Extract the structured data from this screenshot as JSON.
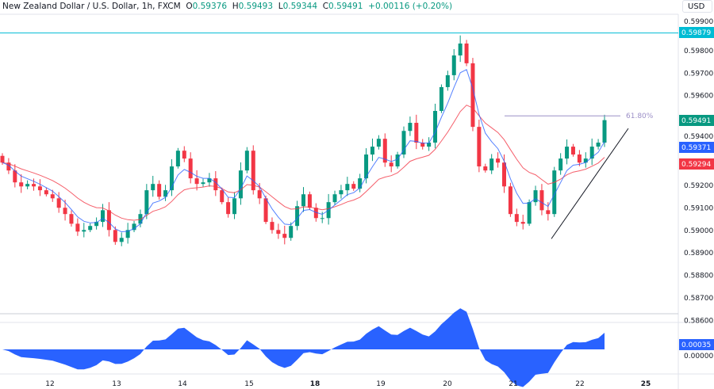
{
  "header": {
    "symbol": "New Zealand Dollar / U.S. Dollar, 1h, FXCM",
    "open_label": "O",
    "open": "0.59376",
    "high_label": "H",
    "high": "0.59493",
    "low_label": "L",
    "low": "0.59344",
    "close_label": "C",
    "close": "0.59491",
    "change": "+0.00116 (+0.20%)"
  },
  "currency": "USD",
  "colors": {
    "up": "#089981",
    "down": "#f23645",
    "fast_ma": "#2962ff",
    "slow_ma": "#f23645",
    "level_line": "#00bcd4",
    "fib": "#9c8fc7",
    "oscillator": "#2962ff"
  },
  "price_axis": [
    "0.59900",
    "0.59800",
    "0.59700",
    "0.59600",
    "0.59400",
    "0.59200",
    "0.59100",
    "0.59000",
    "0.58900",
    "0.58800",
    "0.58700",
    "0.58600"
  ],
  "price_ticks": [
    0.599,
    0.598,
    0.597,
    0.596,
    0.594,
    0.592,
    0.591,
    0.59,
    0.589,
    0.588,
    0.587,
    0.586
  ],
  "time_axis": [
    {
      "label": "12",
      "bold": false
    },
    {
      "label": "13",
      "bold": false
    },
    {
      "label": "14",
      "bold": false
    },
    {
      "label": "15",
      "bold": false
    },
    {
      "label": "18",
      "bold": true
    },
    {
      "label": "19",
      "bold": false
    },
    {
      "label": "20",
      "bold": false
    },
    {
      "label": "21",
      "bold": false
    },
    {
      "label": "22",
      "bold": false
    },
    {
      "label": "25",
      "bold": true
    }
  ],
  "labels": {
    "level": "0.59879",
    "last": "0.59491",
    "fast_ma": "0.59371",
    "slow_ma": "0.59294",
    "oscillator": "0.00035",
    "osc_zero": "0.00000",
    "fib": "61.80%"
  },
  "levels": {
    "horizontal": 0.59879,
    "fib_618": 0.5951,
    "trendline": [
      0.58963,
      0.59454
    ]
  },
  "chart_data": {
    "type": "candlestick",
    "closes": [
      0.59302,
      0.59267,
      0.59214,
      0.59196,
      0.59207,
      0.59196,
      0.59179,
      0.59161,
      0.59143,
      0.59101,
      0.59073,
      0.5903,
      0.58995,
      0.59002,
      0.5902,
      0.59038,
      0.5909,
      0.59002,
      0.58949,
      0.58967,
      0.59002,
      0.5903,
      0.59073,
      0.59179,
      0.59207,
      0.5915,
      0.59179,
      0.59285,
      0.59355,
      0.5932,
      0.59232,
      0.59207,
      0.59214,
      0.59232,
      0.59179,
      0.59126,
      0.59073,
      0.59143,
      0.59267,
      0.59355,
      0.59179,
      0.59143,
      0.59038,
      0.59002,
      0.58985,
      0.58967,
      0.5902,
      0.59108,
      0.59161,
      0.59101,
      0.59055,
      0.59055,
      0.59126,
      0.59161,
      0.59179,
      0.59207,
      0.59186,
      0.59232,
      0.59338,
      0.59373,
      0.59408,
      0.59302,
      0.59285,
      0.59338,
      0.59443,
      0.59479,
      0.59391,
      0.59373,
      0.59391,
      0.59532,
      0.59638,
      0.59691,
      0.59779,
      0.59832,
      0.59744,
      0.59461,
      0.59285,
      0.59267,
      0.5932,
      0.59302,
      0.59196,
      0.59073,
      0.59038,
      0.5903,
      0.59126,
      0.59179,
      0.5909,
      0.59073,
      0.59267,
      0.5932,
      0.59373,
      0.59338,
      0.59302,
      0.5932,
      0.59373,
      0.59391,
      0.59491
    ],
    "ylim": [
      0.5858,
      0.5991
    ]
  }
}
